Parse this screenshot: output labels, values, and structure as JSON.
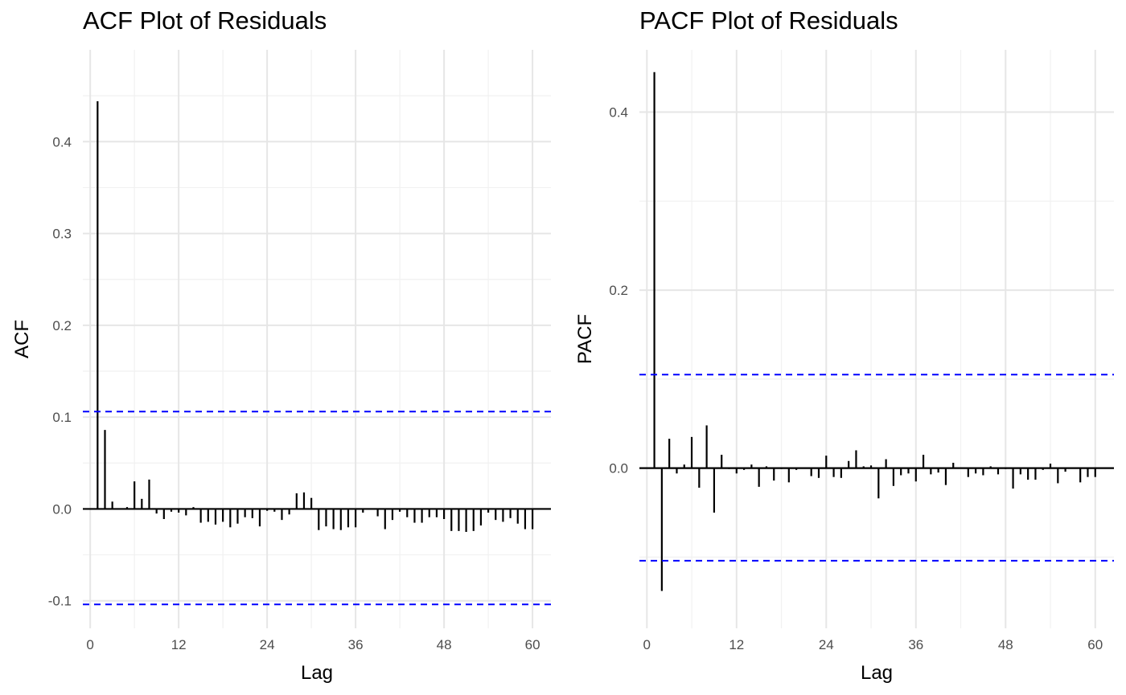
{
  "chart_data": [
    {
      "type": "bar",
      "title": "ACF Plot of Residuals",
      "xlabel": "Lag",
      "ylabel": "ACF",
      "xlim": [
        -1,
        62.5
      ],
      "ylim": [
        -0.13,
        0.5
      ],
      "x_ticks": [
        0,
        12,
        24,
        36,
        48,
        60
      ],
      "x_tick_labels": [
        "0",
        "12",
        "24",
        "36",
        "48",
        "60"
      ],
      "y_ticks": [
        -0.1,
        0.0,
        0.1,
        0.2,
        0.3,
        0.4
      ],
      "y_tick_labels": [
        "-0.1",
        "0.0",
        "0.1",
        "0.2",
        "0.3",
        "0.4"
      ],
      "confidence_bounds": [
        0.106,
        -0.104
      ],
      "grid": true,
      "lags": [
        1,
        2,
        3,
        4,
        5,
        6,
        7,
        8,
        9,
        10,
        11,
        12,
        13,
        14,
        15,
        16,
        17,
        18,
        19,
        20,
        21,
        22,
        23,
        24,
        25,
        26,
        27,
        28,
        29,
        30,
        31,
        32,
        33,
        34,
        35,
        36,
        37,
        38,
        39,
        40,
        41,
        42,
        43,
        44,
        45,
        46,
        47,
        48,
        49,
        50,
        51,
        52,
        53,
        54,
        55,
        56,
        57,
        58,
        59,
        60
      ],
      "values": [
        0.444,
        0.086,
        0.008,
        0.0,
        0.002,
        0.03,
        0.011,
        0.032,
        -0.005,
        -0.011,
        -0.003,
        -0.004,
        -0.007,
        0.002,
        -0.015,
        -0.014,
        -0.017,
        -0.014,
        -0.02,
        -0.016,
        -0.009,
        -0.01,
        -0.019,
        -0.002,
        -0.003,
        -0.012,
        -0.006,
        0.017,
        0.018,
        0.012,
        -0.023,
        -0.019,
        -0.022,
        -0.023,
        -0.02,
        -0.02,
        -0.004,
        0.0,
        -0.008,
        -0.022,
        -0.012,
        -0.003,
        -0.009,
        -0.015,
        -0.015,
        -0.009,
        -0.009,
        -0.011,
        -0.024,
        -0.024,
        -0.025,
        -0.024,
        -0.018,
        -0.004,
        -0.012,
        -0.014,
        -0.01,
        -0.016,
        -0.022,
        -0.022
      ]
    },
    {
      "type": "bar",
      "title": "PACF Plot of Residuals",
      "xlabel": "Lag",
      "ylabel": "PACF",
      "xlim": [
        -1,
        62.5
      ],
      "ylim": [
        -0.18,
        0.47
      ],
      "x_ticks": [
        0,
        12,
        24,
        36,
        48,
        60
      ],
      "x_tick_labels": [
        "0",
        "12",
        "24",
        "36",
        "48",
        "60"
      ],
      "y_ticks": [
        0.0,
        0.2,
        0.4
      ],
      "y_tick_labels": [
        "0.0",
        "0.2",
        "0.4"
      ],
      "confidence_bounds": [
        0.105,
        -0.104
      ],
      "grid": true,
      "lags": [
        1,
        2,
        3,
        4,
        5,
        6,
        7,
        8,
        9,
        10,
        11,
        12,
        13,
        14,
        15,
        16,
        17,
        18,
        19,
        20,
        21,
        22,
        23,
        24,
        25,
        26,
        27,
        28,
        29,
        30,
        31,
        32,
        33,
        34,
        35,
        36,
        37,
        38,
        39,
        40,
        41,
        42,
        43,
        44,
        45,
        46,
        47,
        48,
        49,
        50,
        51,
        52,
        53,
        54,
        55,
        56,
        57,
        58,
        59,
        60
      ],
      "values": [
        0.445,
        -0.138,
        0.033,
        -0.006,
        0.004,
        0.035,
        -0.022,
        0.048,
        -0.05,
        0.015,
        -0.001,
        -0.006,
        -0.002,
        0.004,
        -0.021,
        0.002,
        -0.014,
        -0.001,
        -0.016,
        -0.002,
        0.0,
        -0.009,
        -0.011,
        0.014,
        -0.01,
        -0.011,
        0.008,
        0.02,
        0.002,
        0.003,
        -0.034,
        0.01,
        -0.02,
        -0.008,
        -0.006,
        -0.015,
        0.015,
        -0.007,
        -0.005,
        -0.019,
        0.006,
        0.0,
        -0.01,
        -0.006,
        -0.008,
        0.002,
        -0.007,
        -0.001,
        -0.023,
        -0.007,
        -0.013,
        -0.013,
        -0.002,
        0.005,
        -0.017,
        -0.004,
        0.0,
        -0.016,
        -0.01,
        -0.01
      ]
    }
  ]
}
